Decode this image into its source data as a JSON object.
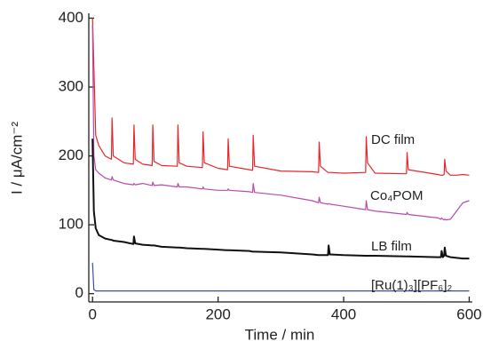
{
  "chart_data": {
    "type": "line",
    "x_label": "Time / min",
    "y_label": "I / μA/cm⁻²",
    "xlim": [
      -6,
      605
    ],
    "ylim": [
      -12,
      407
    ],
    "xticks": [
      0,
      200,
      400,
      600
    ],
    "yticks": [
      0,
      100,
      200,
      300,
      400
    ],
    "x": [
      0,
      2,
      5,
      10,
      20,
      30,
      31,
      33,
      50,
      65,
      66,
      68,
      80,
      95,
      96,
      98,
      110,
      135,
      136,
      138,
      150,
      175,
      176,
      178,
      200,
      215,
      216,
      218,
      250,
      255,
      256,
      258,
      300,
      350,
      360,
      361,
      363,
      375,
      376,
      378,
      400,
      435,
      436,
      438,
      450,
      500,
      501,
      503,
      550,
      555,
      556,
      558,
      560,
      561,
      563,
      570,
      580,
      590,
      600
    ],
    "series": [
      {
        "name": "DC film",
        "color": "#e8262a",
        "values": [
          400,
          330,
          230,
          215,
          200,
          195,
          255,
          200,
          190,
          188,
          245,
          195,
          188,
          186,
          245,
          192,
          186,
          185,
          245,
          190,
          185,
          183,
          235,
          190,
          182,
          180,
          225,
          185,
          180,
          179,
          230,
          185,
          178,
          177,
          176,
          220,
          185,
          176,
          176,
          176,
          175,
          176,
          228,
          190,
          175,
          174,
          205,
          180,
          173,
          172,
          172,
          172,
          173,
          195,
          178,
          172,
          172,
          173,
          172
        ]
      },
      {
        "name": "Co₄POM",
        "color": "#b94aa8",
        "values": [
          390,
          200,
          180,
          175,
          168,
          165,
          170,
          165,
          160,
          158,
          160,
          158,
          160,
          157,
          162,
          157,
          158,
          155,
          160,
          155,
          155,
          152,
          155,
          152,
          150,
          150,
          152,
          150,
          148,
          147,
          160,
          147,
          143,
          135,
          132,
          140,
          132,
          130,
          131,
          130,
          127,
          122,
          135,
          122,
          120,
          115,
          118,
          115,
          110,
          108,
          110,
          108,
          107,
          108,
          107,
          108,
          120,
          132,
          135
        ]
      },
      {
        "name": "LB film",
        "color": "#111111",
        "values": [
          225,
          120,
          95,
          85,
          80,
          78,
          78,
          77,
          75,
          72,
          83,
          73,
          71,
          70,
          70,
          70,
          68,
          67,
          67,
          67,
          66,
          65,
          65,
          65,
          64,
          63,
          63,
          63,
          62,
          61,
          61,
          61,
          60,
          57,
          56,
          56,
          56,
          56,
          70,
          57,
          56,
          55,
          55,
          55,
          55,
          54,
          54,
          54,
          53,
          53,
          62,
          53,
          55,
          67,
          55,
          53,
          52,
          51,
          51
        ]
      },
      {
        "name": "[Ru(1)₃][PF₆]₂",
        "color": "#3b4fa8",
        "values": [
          45,
          6,
          4,
          4,
          4,
          4,
          4,
          4,
          4,
          4,
          4,
          4,
          4,
          4,
          4,
          4,
          4,
          4,
          4,
          4,
          4,
          4,
          4,
          4,
          4,
          4,
          4,
          4,
          4,
          4,
          4,
          4,
          4,
          4,
          4,
          4,
          4,
          4,
          4,
          4,
          4,
          4,
          4,
          4,
          4,
          4,
          4,
          4,
          4,
          4,
          4,
          4,
          4,
          4,
          4,
          4,
          4,
          4,
          4
        ]
      }
    ]
  }
}
